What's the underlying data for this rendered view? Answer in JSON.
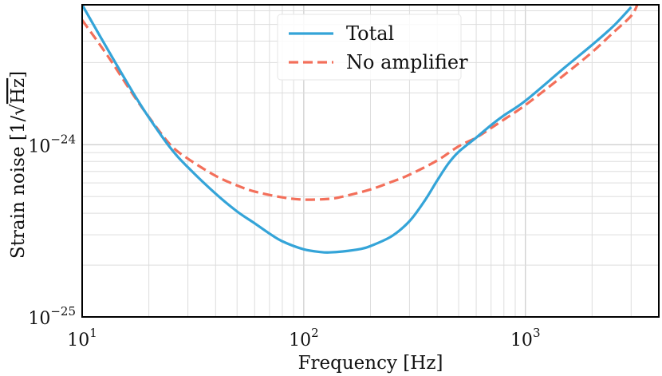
{
  "chart_data": {
    "type": "line",
    "title": "",
    "xlabel": "Frequency [Hz]",
    "ylabel_prefix": "Strain noise [1/",
    "ylabel_sqrt": "Hz",
    "ylabel_suffix": "]",
    "xscale": "log",
    "yscale": "log",
    "xlim": [
      10,
      4000
    ],
    "ylim": [
      1e-25,
      6.5e-24
    ],
    "grid": true,
    "legend_position": "top-center",
    "x_ticks": [
      {
        "base": "10",
        "exp": "1"
      },
      {
        "base": "10",
        "exp": "2"
      },
      {
        "base": "10",
        "exp": "3"
      }
    ],
    "y_ticks": [
      {
        "base": "10",
        "exp": "−24"
      },
      {
        "base": "10",
        "exp": "−25"
      }
    ],
    "series": [
      {
        "name": "Total",
        "color": "#34a4d8",
        "dash": "solid",
        "x": [
          10,
          13,
          17,
          20,
          25,
          30,
          40,
          50,
          60,
          70,
          80,
          100,
          120,
          130,
          150,
          180,
          200,
          250,
          300,
          350,
          400,
          450,
          500,
          600,
          700,
          800,
          1000,
          1500,
          2000,
          2500,
          3000
        ],
        "y": [
          6.5e-24,
          3.6e-24,
          2e-24,
          1.44e-24,
          9.6e-25,
          7.4e-25,
          5.2e-25,
          4.1e-25,
          3.5e-25,
          3.05e-25,
          2.75e-25,
          2.47e-25,
          2.38e-25,
          2.37e-25,
          2.4e-25,
          2.48e-25,
          2.58e-25,
          2.95e-25,
          3.6e-25,
          4.7e-25,
          6.2e-25,
          7.8e-25,
          9.1e-25,
          1.1e-24,
          1.3e-24,
          1.48e-24,
          1.8e-24,
          2.8e-24,
          3.8e-24,
          4.9e-24,
          6.3e-24
        ]
      },
      {
        "name": "No amplifier",
        "color": "#f36f5a",
        "dash": "dashed",
        "x": [
          10,
          13,
          17,
          20,
          25,
          30,
          40,
          50,
          60,
          80,
          100,
          130,
          150,
          200,
          250,
          300,
          400,
          500,
          600,
          700,
          800,
          1000,
          1500,
          2000,
          2500,
          3000,
          3200
        ],
        "y": [
          5.3e-24,
          3.3e-24,
          1.95e-24,
          1.45e-24,
          1e-24,
          8.3e-25,
          6.6e-25,
          5.8e-25,
          5.35e-25,
          4.95e-25,
          4.8e-25,
          4.85e-25,
          5e-25,
          5.5e-25,
          6.1e-25,
          6.7e-25,
          8.1e-25,
          9.8e-25,
          1.1e-24,
          1.25e-24,
          1.4e-24,
          1.7e-24,
          2.55e-24,
          3.45e-24,
          4.5e-24,
          5.6e-24,
          6.5e-24
        ]
      }
    ]
  }
}
